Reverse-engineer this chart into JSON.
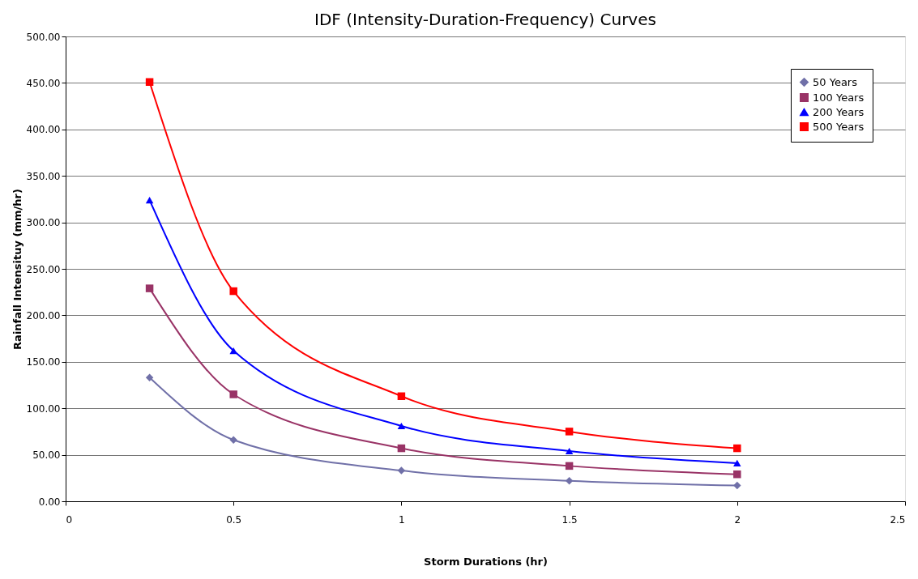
{
  "chart_data": {
    "type": "line",
    "title": "IDF (Intensity-Duration-Frequency) Curves",
    "xlabel": "Storm Durations (hr)",
    "ylabel": "Rainfall Intensituy (mm/hr)",
    "x": [
      0.25,
      0.5,
      1,
      1.5,
      2
    ],
    "series": [
      {
        "name": "50 Years",
        "color": "#7070a8",
        "marker": "diamond",
        "values": [
          133,
          66,
          33,
          22,
          17
        ]
      },
      {
        "name": "100 Years",
        "color": "#993366",
        "marker": "square",
        "values": [
          229,
          115,
          57,
          38,
          29
        ]
      },
      {
        "name": "200 Years",
        "color": "#0000ff",
        "marker": "triangle",
        "values": [
          324,
          162,
          81,
          54,
          41
        ]
      },
      {
        "name": "500 Years",
        "color": "#ff0000",
        "marker": "square",
        "values": [
          451,
          226,
          113,
          75,
          57
        ]
      }
    ],
    "xlim": [
      0,
      2.5
    ],
    "xticks": [
      0,
      0.5,
      1,
      1.5,
      2,
      2.5
    ],
    "ylim": [
      0,
      500
    ],
    "yticks": [
      {
        "value": 0,
        "label": "0.00"
      },
      {
        "value": 50,
        "label": "50.00"
      },
      {
        "value": 100,
        "label": "100.00"
      },
      {
        "value": 150,
        "label": "150.00"
      },
      {
        "value": 200,
        "label": "200.00"
      },
      {
        "value": 250,
        "label": "250.00"
      },
      {
        "value": 300,
        "label": "300.00"
      },
      {
        "value": 350,
        "label": "350.00"
      },
      {
        "value": 400,
        "label": "400.00"
      },
      {
        "value": 450,
        "label": "450.00"
      },
      {
        "value": 500,
        "label": "500.00"
      }
    ],
    "grid": "y",
    "legend": "top right",
    "line_style": "solid"
  }
}
